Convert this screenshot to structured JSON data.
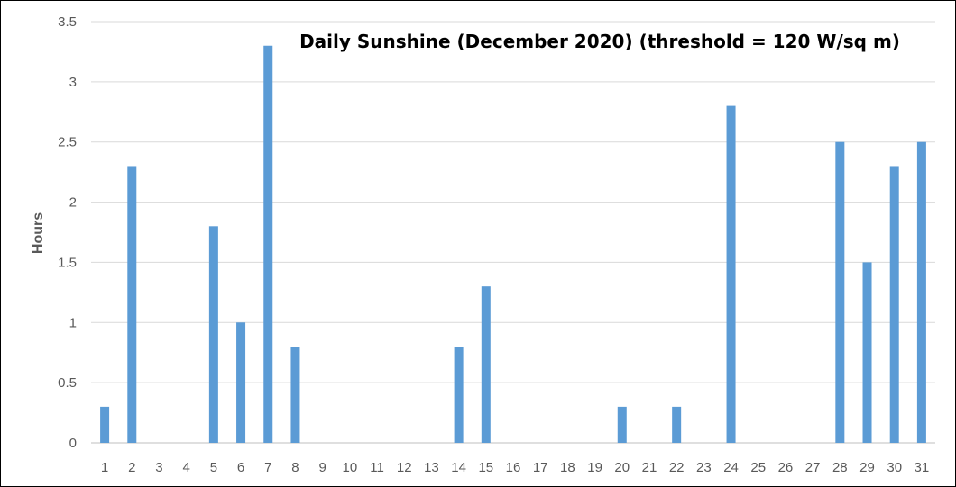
{
  "chart_data": {
    "type": "bar",
    "title": "Daily Sunshine (December 2020) (threshold = 120 W/sq m)",
    "xlabel": "",
    "ylabel": "Hours",
    "ylim": [
      0,
      3.5
    ],
    "yticks": [
      "0",
      "0.5",
      "1",
      "1.5",
      "2",
      "2.5",
      "3",
      "3.5"
    ],
    "grid": true,
    "categories": [
      "1",
      "2",
      "3",
      "4",
      "5",
      "6",
      "7",
      "8",
      "9",
      "10",
      "11",
      "12",
      "13",
      "14",
      "15",
      "16",
      "17",
      "18",
      "19",
      "20",
      "21",
      "22",
      "23",
      "24",
      "25",
      "26",
      "27",
      "28",
      "29",
      "30",
      "31"
    ],
    "values": [
      0.3,
      2.3,
      0,
      0,
      1.8,
      1.0,
      3.3,
      0.8,
      0,
      0,
      0,
      0,
      0,
      0.8,
      1.3,
      0,
      0,
      0,
      0,
      0.3,
      0,
      0.3,
      0,
      2.8,
      0,
      0,
      0,
      2.5,
      1.5,
      2.3,
      2.5
    ],
    "colors": {
      "bar": "#5b9bd5",
      "grid": "#d9d9d9",
      "axis": "#bfbfbf",
      "text": "#595959"
    }
  }
}
